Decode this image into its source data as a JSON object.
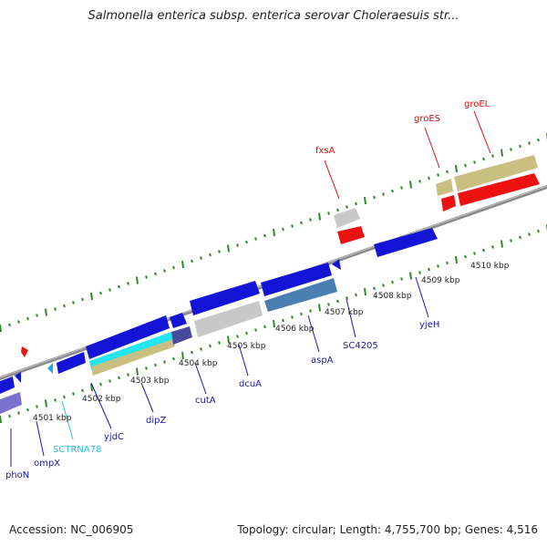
{
  "title": "Salmonella enterica subsp. enterica serovar Choleraesuis str...",
  "footer": {
    "accession": "Accession: NC_006905",
    "topology": "Topology: circular; Length: 4,755,700 bp; Genes: 4,516"
  },
  "colors": {
    "blue_gene": "#1414d6",
    "red_gene": "#ee1111",
    "grey_gene": "#c8c8c8",
    "cyan_gene": "#22e5f0",
    "olive_gene": "#c8bf80",
    "steel_gene": "#4a7fb3",
    "lavender_gene": "#7a72cc",
    "tick_green": "#2a8a2a",
    "backbone": "#8a8a8a",
    "label_blue": "#1a1aa0",
    "label_red": "#d01010",
    "label_cyan": "#33bbdd"
  },
  "kbp_labels": [
    "4501 kbp",
    "4502 kbp",
    "4503 kbp",
    "4504 kbp",
    "4505 kbp",
    "4506 kbp",
    "4507 kbp",
    "4508 kbp",
    "4509 kbp",
    "4510 kbp"
  ],
  "gene_labels": {
    "phoN": "phoN",
    "ompX": "ompX",
    "SCTRNA78": "SCTRNA78",
    "yjdC": "yjdC",
    "dipZ": "dipZ",
    "cutA": "cutA",
    "dcuA": "dcuA",
    "aspA": "aspA",
    "SC4205": "SC4205",
    "yjeH": "yjeH",
    "fxsA": "fxsA",
    "groES": "groES",
    "groEL": "groEL"
  }
}
